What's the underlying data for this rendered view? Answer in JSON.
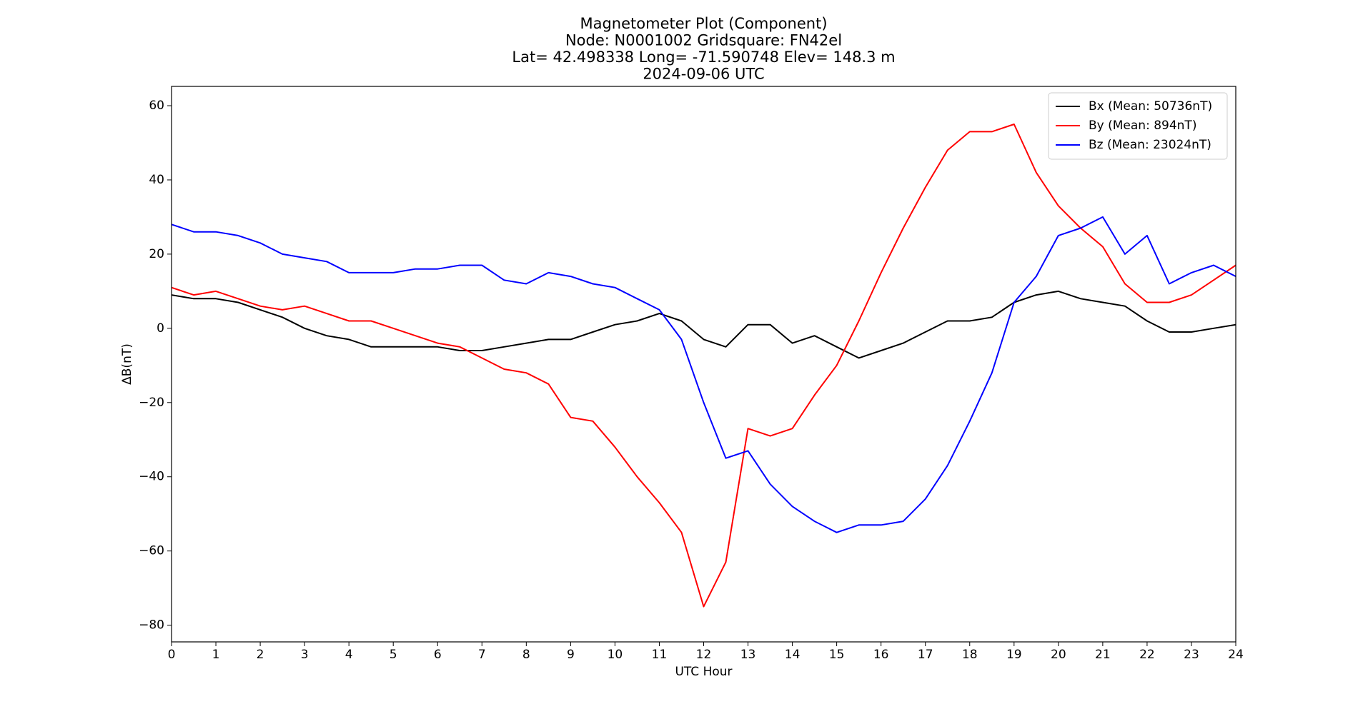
{
  "chart_data": {
    "type": "line",
    "title": [
      "Magnetometer Plot (Component)",
      "Node:  N0001002     Gridsquare:  FN42el",
      "Lat= 42.498338    Long= -71.590748    Elev= 148.3 m",
      "2024-09-06  UTC"
    ],
    "x_label": "UTC Hour",
    "y_label": "ΔB(nT)",
    "x": [
      0,
      0.5,
      1,
      1.5,
      2,
      2.5,
      3,
      3.5,
      4,
      4.5,
      5,
      5.5,
      6,
      6.5,
      7,
      7.5,
      8,
      8.5,
      9,
      9.5,
      10,
      10.5,
      11,
      11.5,
      12,
      12.5,
      13,
      13.5,
      14,
      14.5,
      15,
      15.5,
      16,
      16.5,
      17,
      17.5,
      18,
      18.5,
      19,
      19.5,
      20,
      20.5,
      21,
      21.5,
      22,
      22.5,
      23,
      23.5,
      24
    ],
    "series": [
      {
        "name": "Bx (Mean: 50736nT)",
        "color": "#000000",
        "values": [
          9,
          8,
          8,
          7,
          5,
          3,
          0,
          -2,
          -3,
          -5,
          -5,
          -5,
          -5,
          -6,
          -6,
          -5,
          -4,
          -3,
          -3,
          -1,
          1,
          2,
          4,
          2,
          -3,
          -5,
          1,
          1,
          -4,
          -2,
          -5,
          -8,
          -6,
          -4,
          -1,
          2,
          2,
          3,
          7,
          9,
          10,
          8,
          7,
          6,
          2,
          -1,
          -1,
          0,
          1
        ]
      },
      {
        "name": "By (Mean: 894nT)",
        "color": "#ff0000",
        "values": [
          11,
          9,
          10,
          8,
          6,
          5,
          6,
          4,
          2,
          2,
          0,
          -2,
          -4,
          -5,
          -8,
          -11,
          -12,
          -15,
          -24,
          -25,
          -32,
          -40,
          -47,
          -55,
          -75,
          -63,
          -27,
          -29,
          -27,
          -18,
          -10,
          2,
          15,
          27,
          38,
          48,
          53,
          53,
          55,
          42,
          33,
          27,
          22,
          12,
          7,
          7,
          9,
          13,
          17
        ]
      },
      {
        "name": "Bz (Mean: 23024nT)",
        "color": "#0000ff",
        "values": [
          28,
          26,
          26,
          25,
          23,
          20,
          19,
          18,
          15,
          15,
          15,
          16,
          16,
          17,
          17,
          13,
          12,
          15,
          14,
          12,
          11,
          8,
          5,
          -3,
          -20,
          -35,
          -33,
          -42,
          -48,
          -52,
          -55,
          -53,
          -53,
          -52,
          -46,
          -37,
          -25,
          -12,
          7,
          14,
          25,
          27,
          30,
          20,
          25,
          12,
          15,
          17,
          14
        ]
      }
    ],
    "xlim": [
      0,
      24
    ],
    "xticks": [
      0,
      1,
      2,
      3,
      4,
      5,
      6,
      7,
      8,
      9,
      10,
      11,
      12,
      13,
      14,
      15,
      16,
      17,
      18,
      19,
      20,
      21,
      22,
      23,
      24
    ],
    "ylim": [
      -84.5,
      65.2
    ],
    "yticks": [
      {
        "value": -80,
        "label": "−80"
      },
      {
        "value": -60,
        "label": "−60"
      },
      {
        "value": -40,
        "label": "−40"
      },
      {
        "value": -20,
        "label": "−20"
      },
      0,
      20,
      40,
      60
    ],
    "legend": "upper right",
    "grid": false
  }
}
